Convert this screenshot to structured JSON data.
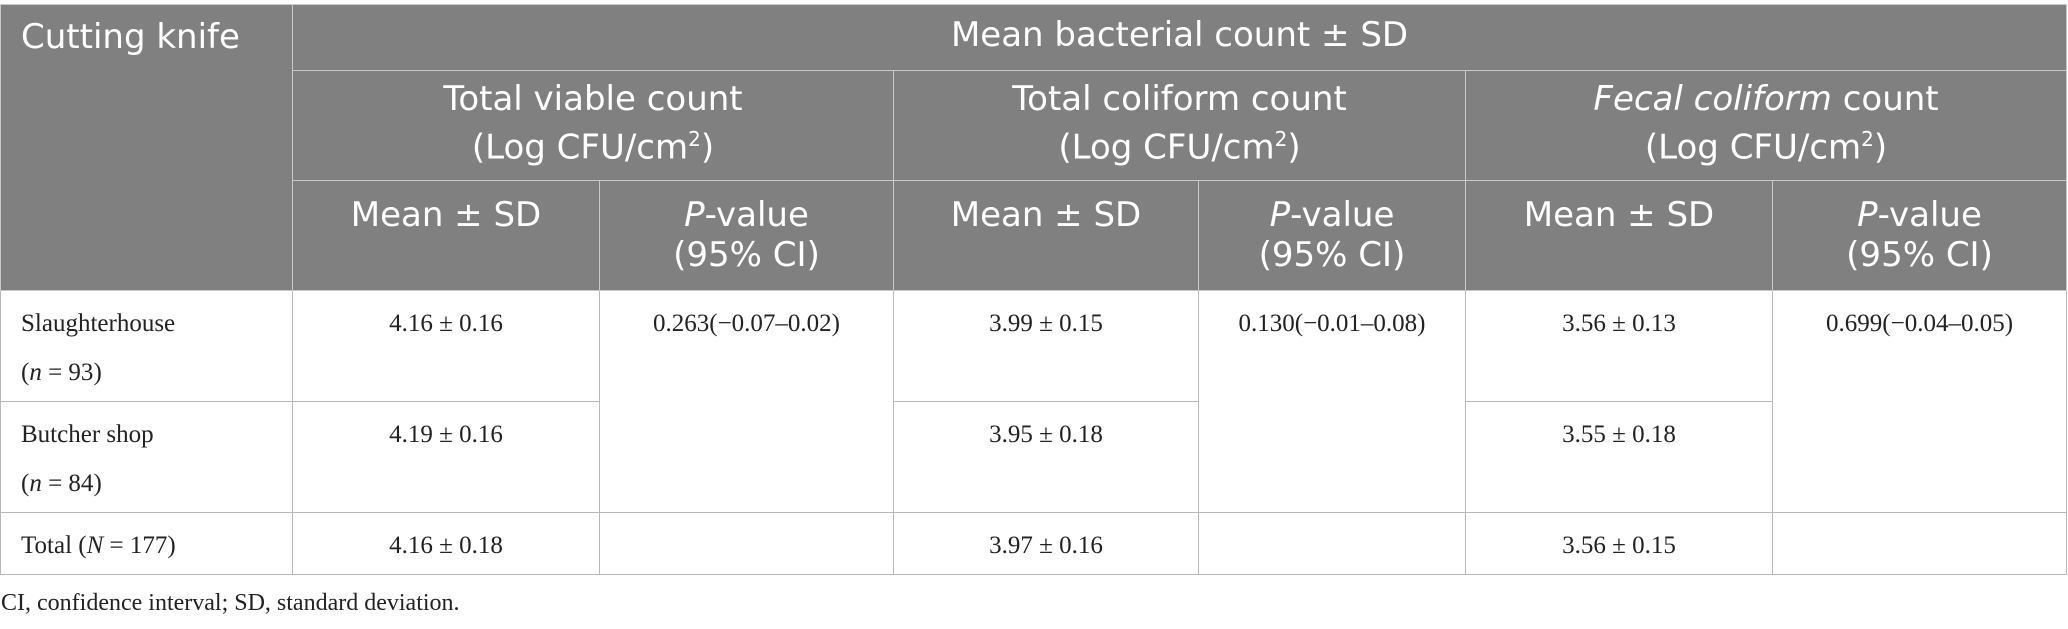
{
  "table": {
    "corner_label": "Cutting knife",
    "top_header": "Mean bacterial count ± SD",
    "groups": [
      {
        "name_pre": "",
        "name_italic": "",
        "name_post": "Total viable count",
        "unit_pre": "(Log CFU/cm",
        "unit_sup": "2",
        "unit_post": ")"
      },
      {
        "name_pre": "",
        "name_italic": "",
        "name_post": "Total coliform count",
        "unit_pre": "(Log CFU/cm",
        "unit_sup": "2",
        "unit_post": ")"
      },
      {
        "name_pre": "",
        "name_italic": "Fecal coliform",
        "name_post": " count",
        "unit_pre": "(Log CFU/cm",
        "unit_sup": "2",
        "unit_post": ")"
      }
    ],
    "subheaders": {
      "mean": "Mean ± SD",
      "p_italic": "P",
      "p_rest": "-value",
      "ci": "(95% CI)"
    },
    "rows": [
      {
        "label": "Slaughterhouse",
        "n_italic": "n",
        "n_rest": " = 93",
        "values": [
          "4.16 ± 0.16",
          "3.99 ± 0.15",
          "3.56 ± 0.13"
        ]
      },
      {
        "label": "Butcher shop",
        "n_italic": "n",
        "n_rest": " = 84",
        "values": [
          "4.19 ± 0.16",
          "3.95 ± 0.18",
          "3.55 ± 0.18"
        ]
      },
      {
        "label_pre": "Total (",
        "N_italic": "N",
        "label_post": " = 177)",
        "values": [
          "4.16 ± 0.18",
          "3.97 ± 0.16",
          "3.56 ± 0.15"
        ]
      }
    ],
    "p_values": [
      "0.263(−0.07–0.02)",
      "0.130(−0.01–0.08)",
      "0.699(−0.04–0.05)"
    ]
  },
  "footnote": "CI, confidence interval; SD, standard deviation."
}
